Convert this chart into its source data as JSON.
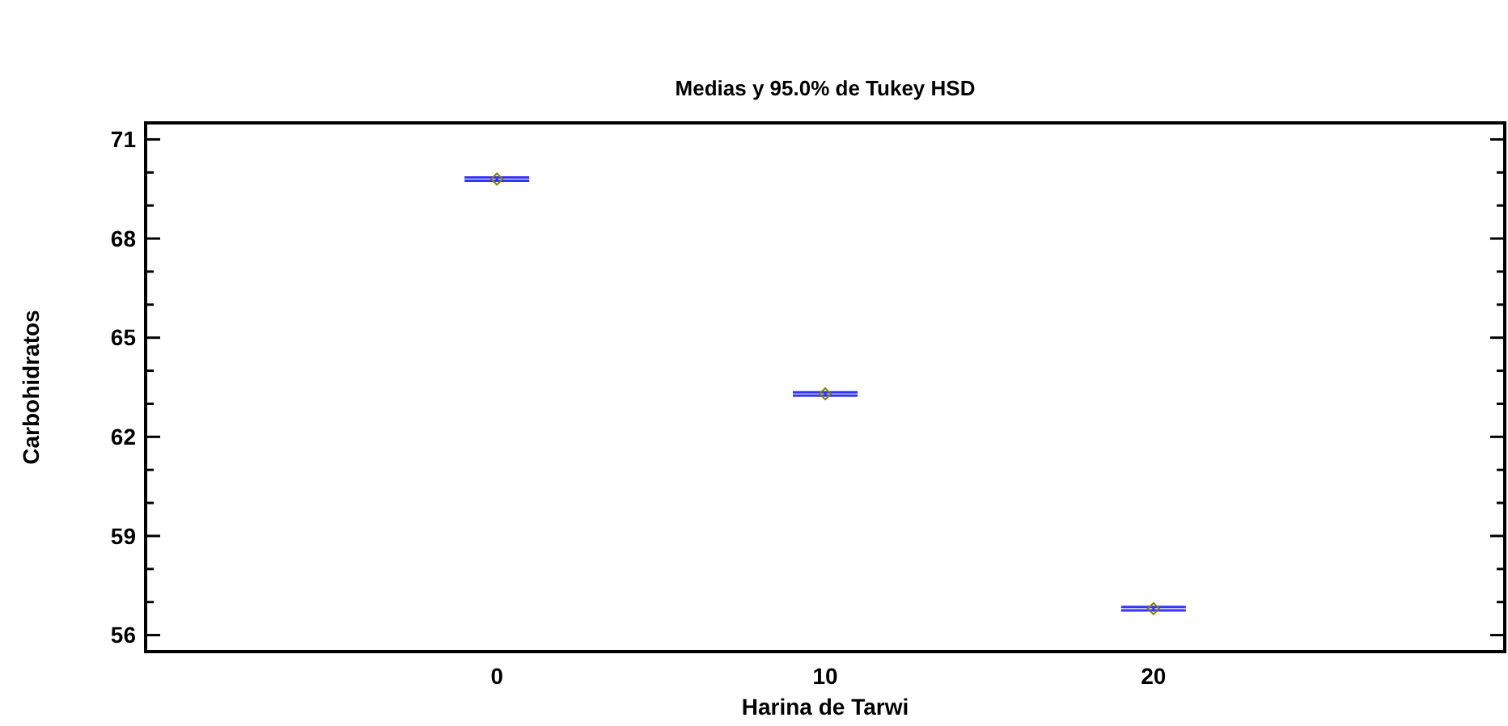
{
  "chart_data": {
    "type": "scatter",
    "title": "Medias y 95.0% de Tukey HSD",
    "xlabel": "Harina de Tarwi",
    "ylabel": "Carbohidratos",
    "categories": [
      "0",
      "10",
      "20"
    ],
    "series": [
      {
        "color": "#808000",
        "values": [
          69.8,
          63.3,
          56.8
        ],
        "errors": [
          0.05,
          0.05,
          0.05
        ]
      }
    ],
    "ylim": [
      55.5,
      71.5
    ],
    "yticks": [
      56,
      {
        "value": 57,
        "label": null
      },
      {
        "value": 58,
        "label": null
      },
      59,
      {
        "value": 60,
        "label": null
      },
      {
        "value": 61,
        "label": null
      },
      62,
      {
        "value": 63,
        "label": null
      },
      {
        "value": 64,
        "label": null
      },
      65,
      {
        "value": 66,
        "label": null
      },
      {
        "value": 67,
        "label": null
      },
      68,
      {
        "value": 69,
        "label": null
      },
      {
        "value": 70,
        "label": null
      },
      71
    ],
    "marker": "diamond",
    "grid": false
  }
}
